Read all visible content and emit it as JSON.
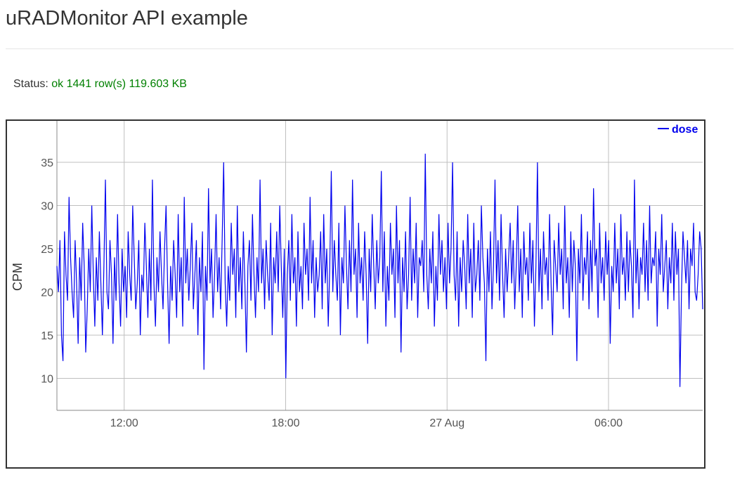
{
  "page": {
    "title": "uRADMonitor API example",
    "status_label": "Status:",
    "status_value": "ok 1441 row(s) 119.603 KB"
  },
  "colors": {
    "series": "#0000ee",
    "status_ok": "#008000"
  },
  "chart_data": {
    "type": "line",
    "title": "",
    "xlabel": "",
    "ylabel": "CPM",
    "ylim": [
      6.3,
      39.8
    ],
    "grid": true,
    "legend_placement": "top-right",
    "x_ticks": [
      "12:00",
      "18:00",
      "27 Aug",
      "06:00"
    ],
    "y_ticks": [
      10,
      15,
      20,
      25,
      30,
      35
    ],
    "series": [
      {
        "name": "dose",
        "x_start": "2023-08-26 09:30",
        "x_end": "2023-08-27 09:30",
        "values": [
          23,
          20,
          26,
          15,
          12,
          27,
          22,
          19,
          31,
          24,
          20,
          17,
          26,
          21,
          14,
          24,
          19,
          28,
          23,
          13,
          18,
          25,
          20,
          30,
          22,
          16,
          24,
          19,
          27,
          21,
          15,
          23,
          33,
          20,
          18,
          26,
          22,
          14,
          24,
          19,
          29,
          21,
          16,
          25,
          20,
          23,
          17,
          27,
          22,
          19,
          30,
          24,
          18,
          21,
          26,
          15,
          22,
          20,
          28,
          23,
          17,
          25,
          19,
          33,
          21,
          16,
          24,
          20,
          27,
          22,
          18,
          25,
          30,
          21,
          14,
          23,
          19,
          26,
          22,
          17,
          29,
          20,
          24,
          16,
          31,
          21,
          25,
          19,
          23,
          28,
          18,
          22,
          26,
          15,
          24,
          20,
          27,
          11,
          23,
          19,
          32,
          21,
          25,
          17,
          22,
          29,
          20,
          24,
          18,
          26,
          35,
          21,
          16,
          23,
          19,
          28,
          22,
          25,
          17,
          30,
          20,
          24,
          18,
          27,
          21,
          13,
          23,
          26,
          19,
          29,
          22,
          17,
          24,
          20,
          33,
          21,
          25,
          18,
          26,
          22,
          19,
          28,
          15,
          24,
          21,
          27,
          20,
          30,
          23,
          17,
          25,
          10,
          22,
          26,
          19,
          29,
          21,
          24,
          16,
          27,
          20,
          23,
          18,
          28,
          22,
          25,
          19,
          31,
          21,
          26,
          17,
          24,
          20,
          22,
          27,
          18,
          29,
          21,
          25,
          16,
          23,
          34,
          20,
          26,
          22,
          19,
          28,
          15,
          24,
          21,
          30,
          23,
          18,
          26,
          20,
          33,
          22,
          25,
          17,
          28,
          21,
          24,
          19,
          27,
          22,
          14,
          25,
          20,
          29,
          23,
          18,
          26,
          21,
          24,
          34,
          20,
          27,
          16,
          23,
          19,
          28,
          22,
          25,
          17,
          30,
          21,
          26,
          13,
          24,
          20,
          27,
          18,
          22,
          31,
          19,
          25,
          21,
          28,
          17,
          24,
          23,
          26,
          20,
          36,
          22,
          18,
          25,
          21,
          27,
          16,
          23,
          19,
          29,
          22,
          26,
          20,
          24,
          18,
          28,
          21,
          25,
          35,
          22,
          19,
          27,
          16,
          24,
          20,
          26,
          23,
          18,
          29,
          21,
          25,
          17,
          28,
          20,
          22,
          26,
          19,
          30,
          24,
          21,
          12,
          25,
          20,
          27,
          18,
          23,
          33,
          21,
          26,
          19,
          29,
          22,
          17,
          25,
          20,
          24,
          28,
          21,
          26,
          18,
          23,
          30,
          20,
          25,
          17,
          27,
          22,
          24,
          19,
          28,
          21,
          26,
          16,
          23,
          35,
          20,
          25,
          18,
          27,
          22,
          24,
          19,
          29,
          21,
          15,
          26,
          23,
          20,
          28,
          22,
          25,
          18,
          30,
          21,
          24,
          17,
          27,
          20,
          26,
          23,
          12,
          25,
          21,
          29,
          19,
          24,
          22,
          27,
          18,
          26,
          20,
          32,
          23,
          25,
          17,
          28,
          21,
          24,
          19,
          27,
          22,
          26,
          14,
          23,
          20,
          28,
          21,
          25,
          18,
          29,
          22,
          24,
          19,
          27,
          20,
          26,
          23,
          17,
          33,
          21,
          25,
          18,
          24,
          22,
          28,
          20,
          26,
          19,
          30,
          21,
          24,
          23,
          27,
          16,
          25,
          22,
          29,
          20,
          23,
          26,
          18,
          24,
          21,
          28,
          19,
          27,
          22,
          25,
          9,
          20,
          27,
          24,
          21,
          26,
          18,
          25,
          23,
          28,
          20,
          19,
          22,
          27,
          25,
          18
        ]
      }
    ]
  }
}
